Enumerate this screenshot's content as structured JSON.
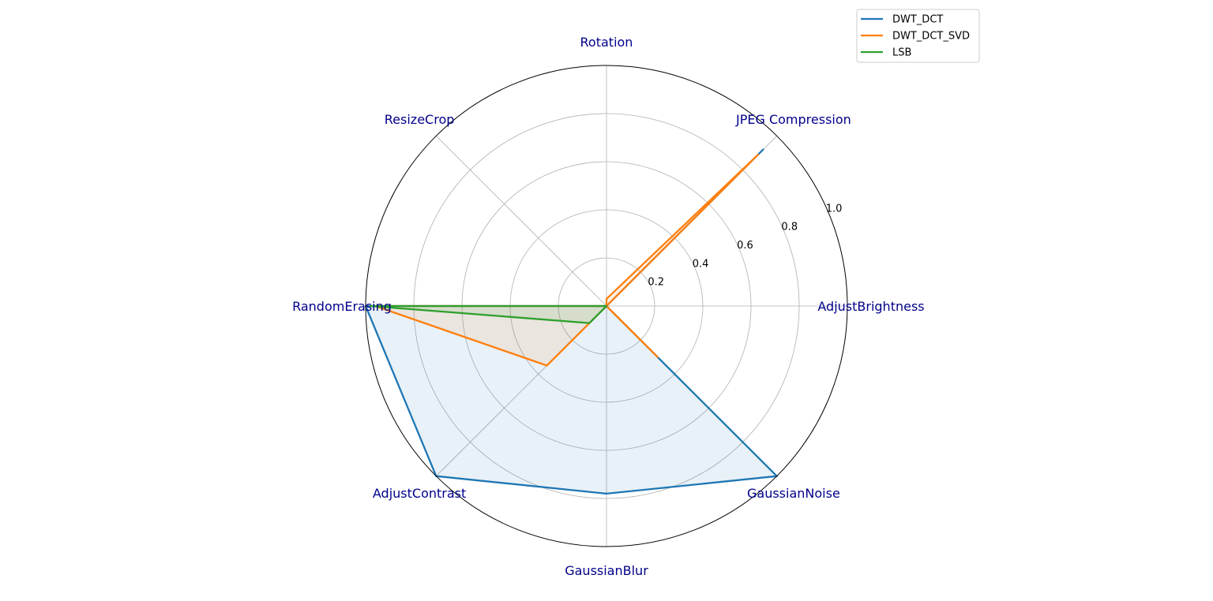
{
  "chart_data": {
    "type": "radar",
    "categories": [
      "AdjustBrightness",
      "JPEG Compression",
      "Rotation",
      "ResizeCrop",
      "RandomErasing",
      "AdjustContrast",
      "GaussianBlur",
      "GaussianNoise"
    ],
    "rlim": [
      0,
      1.0
    ],
    "rticks": [
      0.2,
      0.4,
      0.6,
      0.8,
      1.0
    ],
    "rtick_labels": [
      "0.2",
      "0.4",
      "0.6",
      "0.8",
      "1.0"
    ],
    "grid": true,
    "legend_position": "top-right",
    "series": [
      {
        "name": "DWT_DCT",
        "color": "#1f77b4",
        "fill_opacity": 0.1,
        "values": [
          0.0,
          0.92,
          0.0,
          0.0,
          1.0,
          1.0,
          0.78,
          1.0
        ]
      },
      {
        "name": "DWT_DCT_SVD",
        "color": "#ff7f0e",
        "fill_opacity": 0.1,
        "values": [
          0.0,
          0.89,
          0.03,
          0.0,
          0.96,
          0.35,
          0.0,
          0.3
        ]
      },
      {
        "name": "LSB",
        "color": "#2ca02c",
        "fill_opacity": 0.1,
        "values": [
          0.0,
          0.0,
          0.0,
          0.0,
          0.98,
          0.1,
          0.0,
          0.0
        ]
      }
    ]
  }
}
